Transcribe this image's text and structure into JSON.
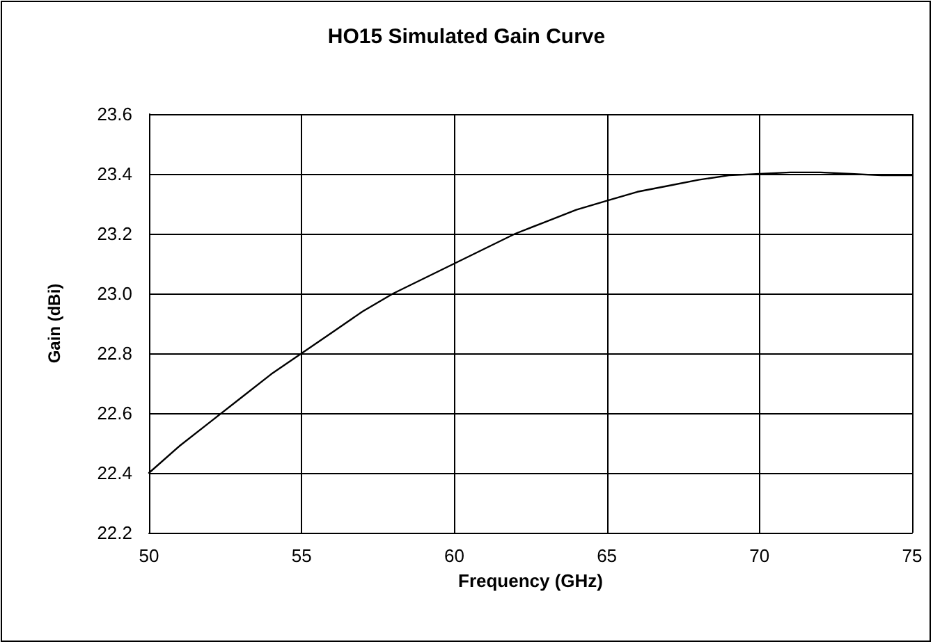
{
  "chart_data": {
    "type": "line",
    "title": "HO15 Simulated Gain Curve",
    "xlabel": "Frequency (GHz)",
    "ylabel": "Gain (dBi)",
    "x": [
      50,
      51,
      52,
      53,
      54,
      55,
      56,
      57,
      58,
      59,
      60,
      61,
      62,
      63,
      64,
      65,
      66,
      67,
      68,
      69,
      70,
      71,
      72,
      73,
      74,
      75
    ],
    "series": [
      {
        "color": "#000000",
        "values": [
          22.4,
          22.49,
          22.57,
          22.65,
          22.73,
          22.8,
          22.87,
          22.94,
          23.0,
          23.05,
          23.1,
          23.15,
          23.2,
          23.24,
          23.28,
          23.31,
          23.34,
          23.36,
          23.38,
          23.395,
          23.4,
          23.405,
          23.405,
          23.4,
          23.395,
          23.395
        ]
      }
    ],
    "xlim": [
      50,
      75
    ],
    "xticks": [
      50,
      55,
      60,
      65,
      70,
      75
    ],
    "ylim": [
      22.2,
      23.6
    ],
    "yticks": [
      {
        "value": 22.2,
        "label": "22.2"
      },
      {
        "value": 22.4,
        "label": "22.4"
      },
      {
        "value": 22.6,
        "label": "22.6"
      },
      {
        "value": 22.8,
        "label": "22.8"
      },
      {
        "value": 23.0,
        "label": "23.0"
      },
      {
        "value": 23.2,
        "label": "23.2"
      },
      {
        "value": 23.4,
        "label": "23.4"
      },
      {
        "value": 23.6,
        "label": "23.6"
      }
    ],
    "grid": true,
    "marker": "none",
    "line_style": "solid"
  }
}
